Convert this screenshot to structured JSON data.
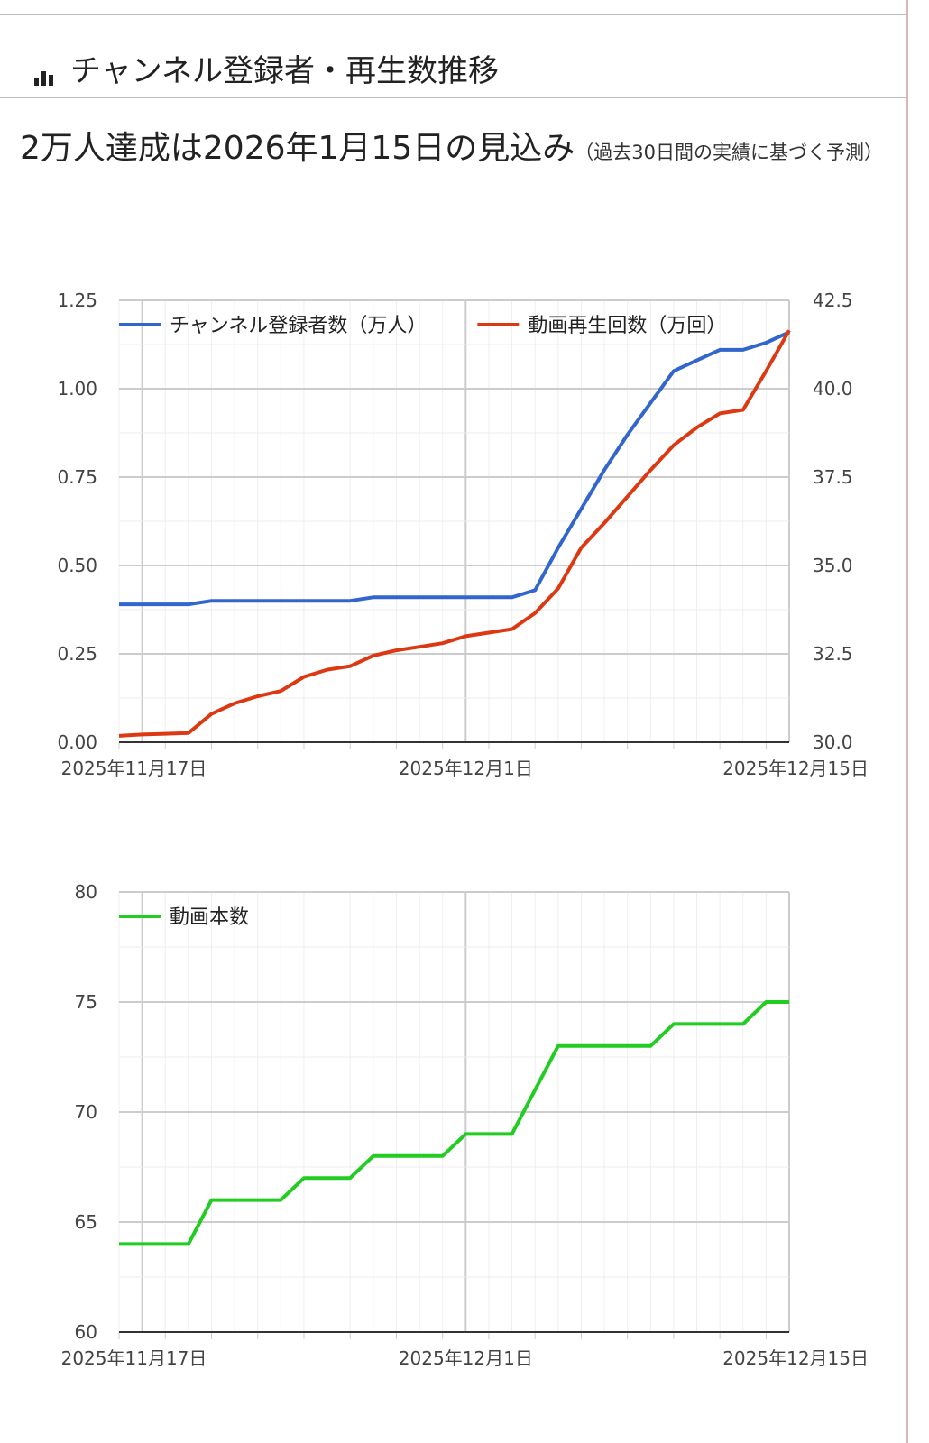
{
  "header": {
    "title": "チャンネル登録者・再生数推移",
    "icon": "bar-chart-icon"
  },
  "forecast": {
    "main": "2万人達成は2026年1月15日の見込み",
    "note": "（過去30日間の実績に基づく予測）"
  },
  "colors": {
    "subscribers": "#3366cc",
    "views": "#dc3912",
    "videos": "#22cc22"
  },
  "chart_data": [
    {
      "type": "line",
      "x": [
        "2025-11-16",
        "2025-11-17",
        "2025-11-18",
        "2025-11-19",
        "2025-11-20",
        "2025-11-21",
        "2025-11-22",
        "2025-11-23",
        "2025-11-24",
        "2025-11-25",
        "2025-11-26",
        "2025-11-27",
        "2025-11-28",
        "2025-11-29",
        "2025-11-30",
        "2025-12-01",
        "2025-12-02",
        "2025-12-03",
        "2025-12-04",
        "2025-12-05",
        "2025-12-06",
        "2025-12-07",
        "2025-12-08",
        "2025-12-09",
        "2025-12-10",
        "2025-12-11",
        "2025-12-12",
        "2025-12-13",
        "2025-12-14",
        "2025-12-15"
      ],
      "x_ticks": [
        "2025年11月17日",
        "2025年12月1日",
        "2025年12月15日"
      ],
      "series": [
        {
          "name": "チャンネル登録者数（万人）",
          "axis": "left",
          "values": [
            0.39,
            0.39,
            0.39,
            0.39,
            0.4,
            0.4,
            0.4,
            0.4,
            0.4,
            0.4,
            0.4,
            0.41,
            0.41,
            0.41,
            0.41,
            0.41,
            0.41,
            0.41,
            0.43,
            0.55,
            0.66,
            0.77,
            0.87,
            0.96,
            1.05,
            1.08,
            1.11,
            1.11,
            1.13,
            1.16
          ]
        },
        {
          "name": "動画再生回数（万回）",
          "axis": "right",
          "values": [
            30.18,
            30.22,
            30.24,
            30.26,
            30.8,
            31.1,
            31.3,
            31.45,
            31.85,
            32.05,
            32.15,
            32.45,
            32.6,
            32.7,
            32.8,
            33.0,
            33.1,
            33.2,
            33.65,
            34.35,
            35.5,
            36.2,
            36.95,
            37.7,
            38.4,
            38.9,
            39.3,
            39.4,
            40.5,
            41.65
          ]
        }
      ],
      "left_ticks": [
        "0.00",
        "0.25",
        "0.50",
        "0.75",
        "1.00",
        "1.25"
      ],
      "right_ticks": [
        "30.0",
        "32.5",
        "35.0",
        "37.5",
        "40.0",
        "42.5"
      ],
      "ylim_left": [
        0,
        1.25
      ],
      "ylim_right": [
        30,
        42.5
      ],
      "legend": "top",
      "grid": true
    },
    {
      "type": "line",
      "x": [
        "2025-11-16",
        "2025-11-17",
        "2025-11-18",
        "2025-11-19",
        "2025-11-20",
        "2025-11-21",
        "2025-11-22",
        "2025-11-23",
        "2025-11-24",
        "2025-11-25",
        "2025-11-26",
        "2025-11-27",
        "2025-11-28",
        "2025-11-29",
        "2025-11-30",
        "2025-12-01",
        "2025-12-02",
        "2025-12-03",
        "2025-12-04",
        "2025-12-05",
        "2025-12-06",
        "2025-12-07",
        "2025-12-08",
        "2025-12-09",
        "2025-12-10",
        "2025-12-11",
        "2025-12-12",
        "2025-12-13",
        "2025-12-14",
        "2025-12-15"
      ],
      "x_ticks": [
        "2025年11月17日",
        "2025年12月1日",
        "2025年12月15日"
      ],
      "series": [
        {
          "name": "動画本数",
          "values": [
            64,
            64,
            64,
            64,
            66,
            66,
            66,
            66,
            67,
            67,
            67,
            68,
            68,
            68,
            68,
            69,
            69,
            69,
            71,
            73,
            73,
            73,
            73,
            73,
            74,
            74,
            74,
            74,
            75,
            75
          ]
        }
      ],
      "y_ticks": [
        "60",
        "65",
        "70",
        "75",
        "80"
      ],
      "ylim": [
        60,
        80
      ],
      "legend": "top-left",
      "grid": true
    }
  ]
}
